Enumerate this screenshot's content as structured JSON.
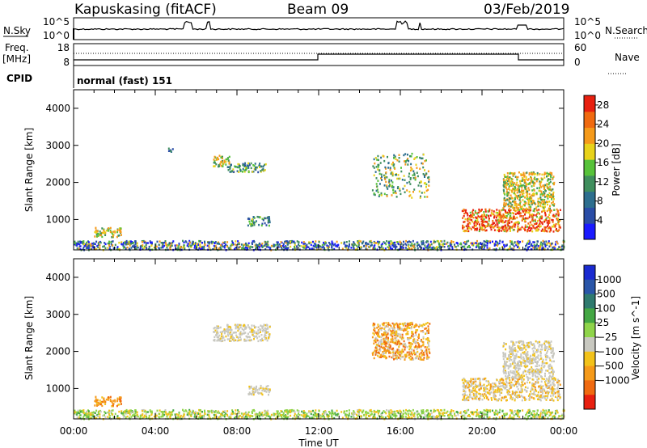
{
  "header": {
    "station": "Kapuskasing (fitACF)",
    "beam": "Beam 09",
    "date": "03/Feb/2019"
  },
  "strip_labels": {
    "nsky": "N.Sky",
    "freq_line1": "Freq.",
    "freq_line2": "[MHz]",
    "cpid": "CPID",
    "nsearch": "N.Search",
    "nave": "Nave",
    "noise_top": "10^5",
    "noise_bottom": "10^0",
    "noise_top_right": "10^5",
    "noise_bottom_right": "10^0",
    "freq_top": "18",
    "freq_bottom": "8",
    "nave_top": "60",
    "nave_bottom": "0",
    "cpid_text": "normal (fast) 151"
  },
  "colors": {
    "power": [
      "#1a1aff",
      "#2a4da6",
      "#2d6e8e",
      "#3f8e5d",
      "#57c23a",
      "#e8d21a",
      "#f59a1a",
      "#f06a10",
      "#e82010"
    ],
    "velocity": [
      "#1a2ad0",
      "#2a56a8",
      "#2f7a6e",
      "#44a744",
      "#8fd44a",
      "#c8c8c0",
      "#f2c21a",
      "#f59a1a",
      "#f06a10",
      "#e82010"
    ]
  },
  "chart_data": [
    {
      "type": "heatmap",
      "name": "power",
      "xlabel": "",
      "ylabel": "Slant Range [km]",
      "x_ticks": [
        "00:00",
        "04:00",
        "08:00",
        "12:00",
        "16:00",
        "20:00",
        "00:00"
      ],
      "x_range_hours": [
        0,
        24
      ],
      "y_range_km": [
        180,
        4500
      ],
      "y_ticks": [
        1000,
        2000,
        3000,
        4000
      ],
      "colorbar_label": "Power [dB]",
      "colorbar_ticks": [
        4,
        8,
        12,
        16,
        20,
        24,
        28
      ],
      "colorbar_range": [
        0,
        30
      ],
      "regions": [
        {
          "t": [
            0.0,
            24.0
          ],
          "r": [
            200,
            450
          ],
          "level": "mixed-low"
        },
        {
          "t": [
            1.0,
            2.3
          ],
          "r": [
            550,
            800
          ],
          "level": "medium"
        },
        {
          "t": [
            4.6,
            5.0
          ],
          "r": [
            2850,
            2950
          ],
          "level": "low"
        },
        {
          "t": [
            6.8,
            7.6
          ],
          "r": [
            2450,
            2750
          ],
          "level": "medium"
        },
        {
          "t": [
            7.5,
            9.4
          ],
          "r": [
            2300,
            2550
          ],
          "level": "low-medium"
        },
        {
          "t": [
            8.5,
            9.6
          ],
          "r": [
            850,
            1100
          ],
          "level": "low-medium"
        },
        {
          "t": [
            14.6,
            17.4
          ],
          "r": [
            1600,
            2800
          ],
          "level": "scattered"
        },
        {
          "t": [
            19.0,
            23.8
          ],
          "r": [
            700,
            1300
          ],
          "level": "high"
        },
        {
          "t": [
            21.0,
            23.5
          ],
          "r": [
            1300,
            2300
          ],
          "level": "medium"
        }
      ]
    },
    {
      "type": "heatmap",
      "name": "velocity",
      "xlabel": "Time UT",
      "ylabel": "Slant Range [km]",
      "x_ticks": [
        "00:00",
        "04:00",
        "08:00",
        "12:00",
        "16:00",
        "20:00",
        "00:00"
      ],
      "x_range_hours": [
        0,
        24
      ],
      "y_range_km": [
        180,
        4500
      ],
      "y_ticks": [
        1000,
        2000,
        3000,
        4000
      ],
      "colorbar_label": "Velocity [m s^-1]",
      "colorbar_ticks": [
        "1000",
        "500",
        "100",
        "25",
        "−25",
        "−100",
        "−500",
        "−1000"
      ],
      "regions": [
        {
          "t": [
            0.0,
            24.0
          ],
          "r": [
            200,
            450
          ],
          "velocity": "green-yellow"
        },
        {
          "t": [
            1.0,
            2.3
          ],
          "r": [
            550,
            800
          ],
          "velocity": "orange"
        },
        {
          "t": [
            6.8,
            9.6
          ],
          "r": [
            2300,
            2750
          ],
          "velocity": "grey"
        },
        {
          "t": [
            8.5,
            9.6
          ],
          "r": [
            850,
            1100
          ],
          "velocity": "grey"
        },
        {
          "t": [
            14.6,
            17.4
          ],
          "r": [
            1800,
            2800
          ],
          "velocity": "orange-grey"
        },
        {
          "t": [
            19.0,
            23.8
          ],
          "r": [
            700,
            1300
          ],
          "velocity": "grey-yellow"
        },
        {
          "t": [
            21.0,
            23.5
          ],
          "r": [
            1300,
            2300
          ],
          "velocity": "grey"
        }
      ]
    }
  ]
}
